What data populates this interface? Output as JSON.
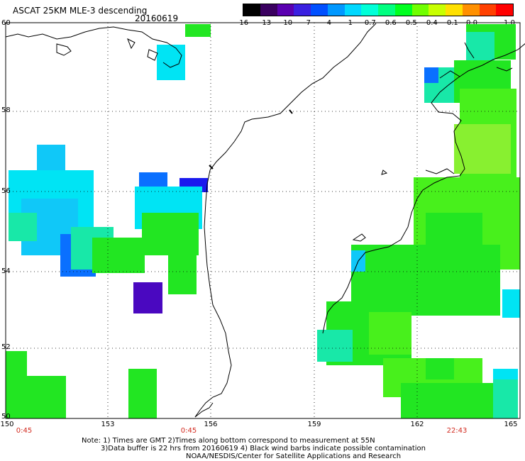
{
  "header": {
    "title": "ASCAT 25KM MLE-3 descending",
    "date": "20160619"
  },
  "colorbar": {
    "ticks": [
      "-16",
      "-13",
      "-10",
      "-7",
      "-4",
      "-1",
      "-0.7",
      "-0.6",
      "-0.5",
      "-0.4",
      "-0.1",
      "0.0",
      "1.0"
    ],
    "colors": [
      "#000000",
      "#3a0060",
      "#5a00b0",
      "#3a20e0",
      "#0050ff",
      "#0098ff",
      "#00d8ff",
      "#00ffd8",
      "#00ff80",
      "#00ff20",
      "#70ff00",
      "#c8ff00",
      "#ffe000",
      "#ff9000",
      "#ff4000",
      "#ff0000"
    ]
  },
  "axes": {
    "lat_labels": [
      "60",
      "58",
      "56",
      "54",
      "52",
      "50"
    ],
    "lon_labels": [
      "150",
      "153",
      "156",
      "159",
      "162",
      "165"
    ],
    "time_labels": [
      "0:45",
      "0:45",
      "22:43"
    ]
  },
  "notes": {
    "line1": "Note: 1) Times are GMT 2)Times along bottom correspond to measurement at 55N",
    "line2": "3)Data buffer is 22 hrs from 20160619 4) Black wind barbs indicate possible contamination",
    "line3": "NOAA/NESDIS/Center for Satellite Applications and Research"
  },
  "legend_colors": {
    "green": "#22e622",
    "bright_green": "#48f01c",
    "yellow_green": "#88f030",
    "aqua": "#18e8a8",
    "cyan": "#00e4f4",
    "sky": "#10c8f8",
    "blue": "#0a70ff",
    "deep_blue": "#1a1aee",
    "purple": "#4a08c0"
  }
}
